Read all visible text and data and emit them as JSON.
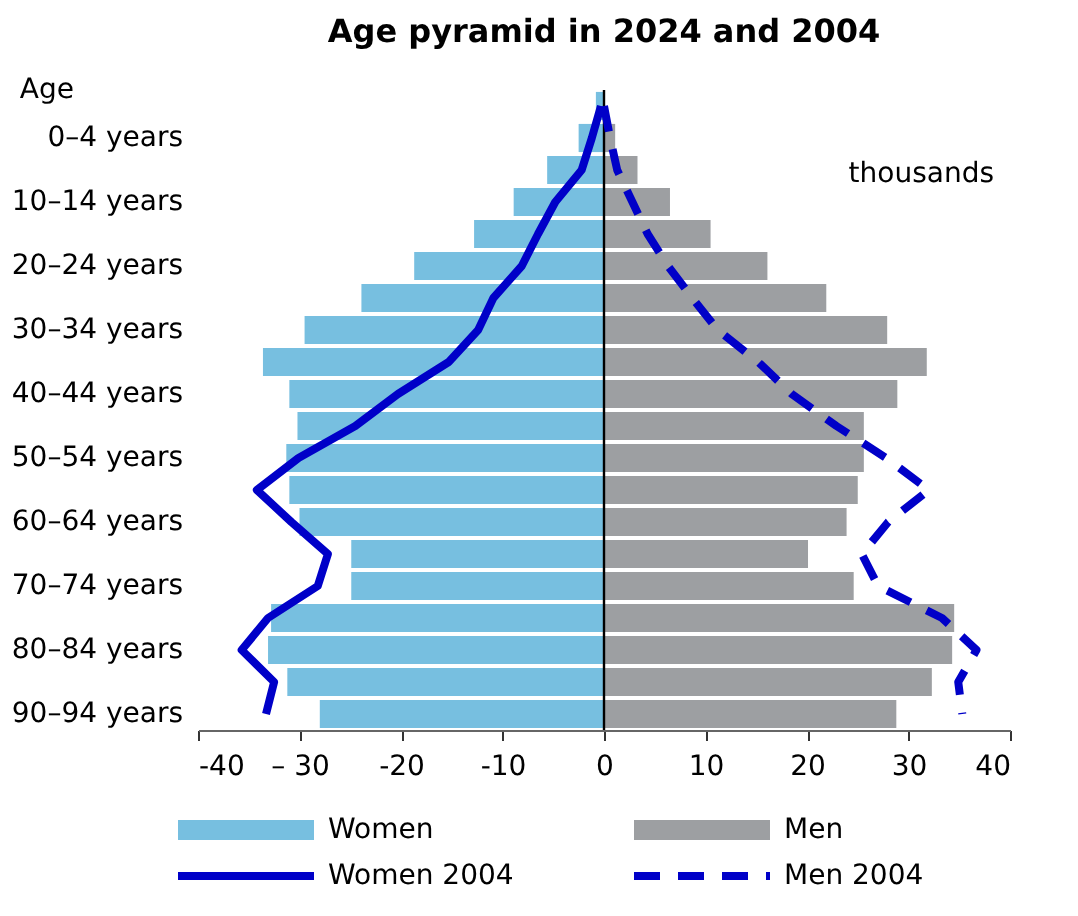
{
  "chart_data": {
    "type": "bar",
    "orientation": "horizontal",
    "title": "Age pyramid in 2024 and 2004",
    "ylabel": "Age",
    "categories": [
      null,
      "0–4 years",
      null,
      "10–14 years",
      null,
      "20–24 years",
      null,
      "30–34 years",
      null,
      "40–44 years",
      null,
      "50–54 years",
      null,
      "60–64 years",
      null,
      "70–74 years",
      null,
      "80–84 years",
      null,
      "90–94 years"
    ],
    "series": [
      {
        "name": "Women",
        "color": "#77bfe0",
        "values": [
          -0.8,
          -2.5,
          -5.6,
          -8.9,
          -12.8,
          -18.7,
          -23.9,
          -29.5,
          -33.6,
          -31.0,
          -30.2,
          -31.3,
          -31.0,
          -30.0,
          -24.9,
          -24.9,
          -32.8,
          -33.1,
          -31.2,
          -28.0
        ]
      },
      {
        "name": "Men",
        "color": "#9d9fa2",
        "values": [
          null,
          1.1,
          3.3,
          6.5,
          10.5,
          16.1,
          21.9,
          27.9,
          31.8,
          28.9,
          25.6,
          25.6,
          25.0,
          23.9,
          20.1,
          24.6,
          34.5,
          34.3,
          32.3,
          28.8
        ]
      },
      {
        "name": "Women 2004",
        "type": "line",
        "color": "#0000c8",
        "line_style": "solid",
        "values": [
          -0.3,
          -1.2,
          -2.2,
          -4.8,
          -6.5,
          -8.1,
          -10.9,
          -12.4,
          -15.3,
          -20.3,
          -24.5,
          -30.1,
          -34.2,
          -30.8,
          -27.2,
          -28.2,
          -33.1,
          -35.7,
          -32.5,
          -33.3
        ]
      },
      {
        "name": "Men 2004",
        "type": "line",
        "color": "#0000c8",
        "line_style": "dashed",
        "values": [
          0.0,
          0.6,
          1.3,
          2.8,
          4.3,
          6.3,
          8.7,
          11.2,
          15.2,
          18.5,
          22.9,
          27.8,
          32.0,
          28.0,
          25.4,
          27.0,
          33.3,
          36.7,
          34.9,
          35.3
        ]
      }
    ],
    "xlim": [
      -40,
      40
    ],
    "xticks": [
      -40,
      {
        "value": -30,
        "label": "– 30"
      },
      -20,
      -10,
      0,
      10,
      20,
      30,
      40
    ],
    "ref_lines": [
      {
        "axis": "x",
        "value": 0,
        "color": "#000000"
      }
    ],
    "annotations": [
      "thousands"
    ],
    "grid": false,
    "legend": "bottom",
    "stacked": true
  }
}
